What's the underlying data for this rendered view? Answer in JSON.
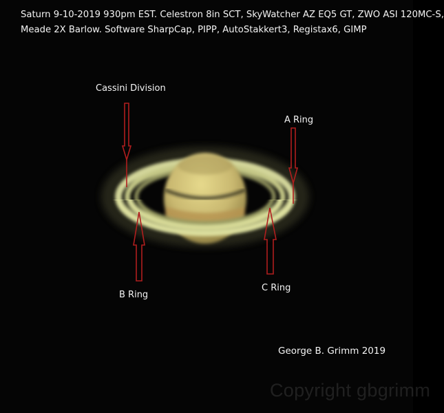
{
  "caption": {
    "line1": "Saturn 9-10-2019 930pm EST. Celestron 8in SCT, SkyWatcher AZ EQ5 GT, ZWO ASI 120MC-S,",
    "line2": "Meade 2X Barlow. Software SharpCap, PIPP, AutoStakkert3, Registax6, GIMP"
  },
  "labels": {
    "cassini_division": "Cassini Division",
    "a_ring": "A Ring",
    "b_ring": "B Ring",
    "c_ring": "C Ring"
  },
  "credit": "George B. Grimm 2019",
  "watermark": "Copyright gbgrimm",
  "colors": {
    "background": "#050505",
    "arrow": "#b01e1e",
    "text": "#f4f4f4",
    "ring": "#d9dc9a",
    "globe": "#cfc07a"
  }
}
